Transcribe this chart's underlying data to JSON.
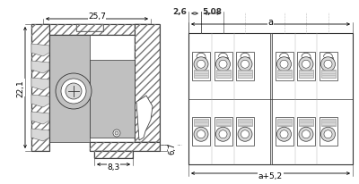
{
  "bg_color": "#ffffff",
  "line_color": "#333333",
  "gray_fill": "#c0c0c0",
  "light_gray": "#d8d8d8",
  "dim_25_7": "25,7",
  "dim_22_1": "22,1",
  "dim_6_7": "6,7",
  "dim_8_3": "8,3",
  "dim_2_6": "2,6",
  "dim_5_08": "5,08",
  "dim_a": "a",
  "dim_a52": "a+5,2",
  "fig_width": 4.0,
  "fig_height": 2.07,
  "dpi": 100
}
